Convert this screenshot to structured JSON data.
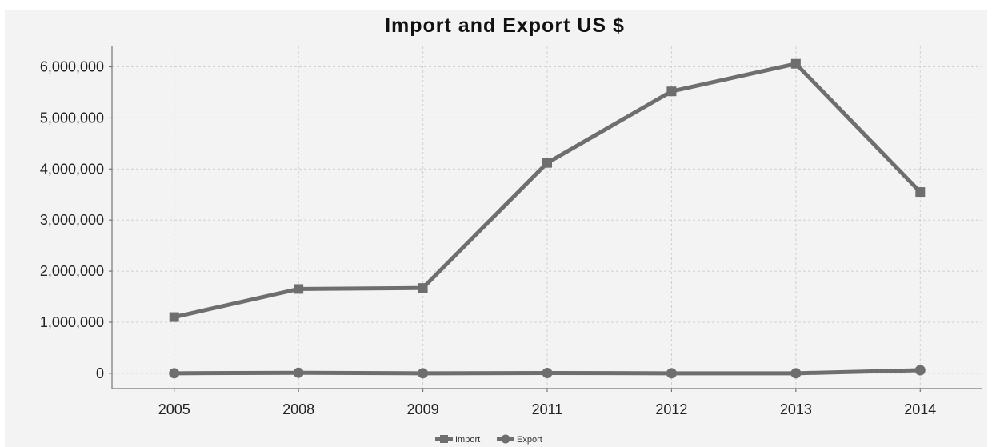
{
  "chart_data": {
    "type": "line",
    "title": "Import and Export  US $",
    "categories": [
      "2005",
      "2008",
      "2009",
      "2011",
      "2012",
      "2013",
      "2014"
    ],
    "y_ticks": [
      "0",
      "1,000,000",
      "2,000,000",
      "3,000,000",
      "4,000,000",
      "5,000,000",
      "6,000,000"
    ],
    "ylim": [
      -300000,
      6400000
    ],
    "grid": true,
    "legend_placement": "bottom-center",
    "series": [
      {
        "name": "Import",
        "marker": "square",
        "color": "#6e6e6e",
        "values": [
          1100000,
          1650000,
          1670000,
          4120000,
          5520000,
          6060000,
          3550000
        ]
      },
      {
        "name": "Export",
        "marker": "circle",
        "color": "#6e6e6e",
        "values": [
          0,
          10000,
          0,
          5000,
          0,
          0,
          60000
        ]
      }
    ]
  }
}
